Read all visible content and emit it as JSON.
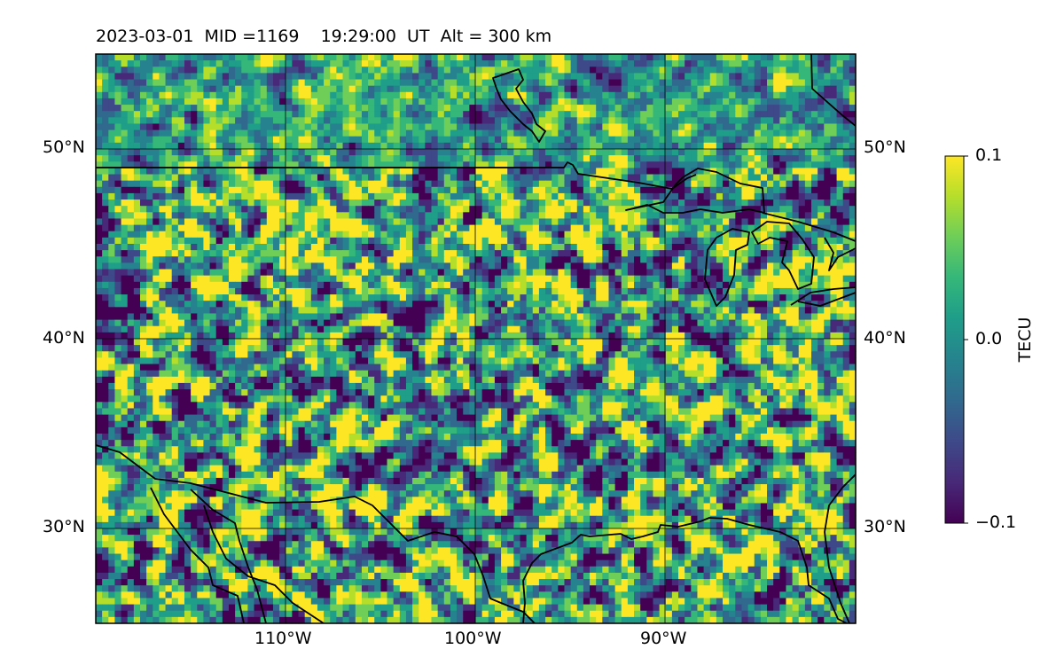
{
  "title": "2023-03-01  MID =1169    19:29:00  UT  Alt = 300 km",
  "map": {
    "type": "heatmap",
    "lon_range": [
      -120,
      -80
    ],
    "lat_range": [
      25,
      55
    ],
    "gridlines": true,
    "lon_ticks": [
      -110,
      -100,
      -90
    ],
    "lat_ticks": [
      30,
      40,
      50
    ],
    "lon_tick_labels": [
      "110°W",
      "100°W",
      "90°W"
    ],
    "lat_tick_labels_left": [
      "30°N",
      "40°N",
      "50°N"
    ],
    "lat_tick_labels_right": [
      "30°N",
      "40°N",
      "50°N"
    ],
    "features": [
      "coastlines",
      "country borders",
      "Great Lakes"
    ]
  },
  "chart_data": {
    "type": "heatmap",
    "title": "2023-03-01  MID =1169    19:29:00  UT  Alt = 300 km",
    "xlabel": "",
    "ylabel": "",
    "xlim": [
      -120,
      -80
    ],
    "ylim": [
      25,
      55
    ],
    "colormap": "viridis",
    "value_range": [
      -0.1,
      0.1
    ]
  },
  "colorbar": {
    "label": "TECU",
    "range": [
      -0.1,
      0.1
    ],
    "tick_labels": [
      "0.1",
      "0.0",
      "−0.1"
    ],
    "colors": [
      "#fde725",
      "#b5de2b",
      "#6ece58",
      "#35b779",
      "#1f9e89",
      "#26828e",
      "#31688e",
      "#3e4989",
      "#482878",
      "#440154"
    ]
  }
}
